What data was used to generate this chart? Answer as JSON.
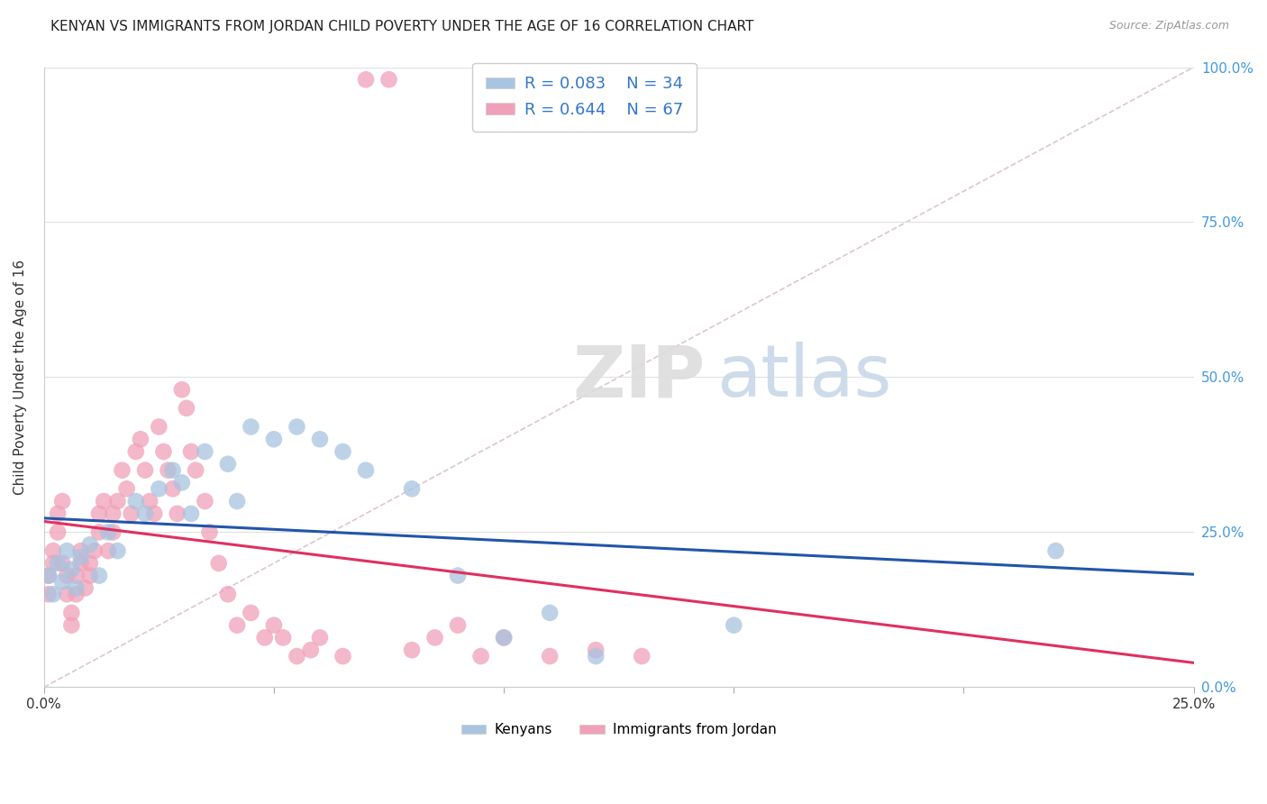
{
  "title": "KENYAN VS IMMIGRANTS FROM JORDAN CHILD POVERTY UNDER THE AGE OF 16 CORRELATION CHART",
  "source": "Source: ZipAtlas.com",
  "ylabel": "Child Poverty Under the Age of 16",
  "legend_blue": {
    "R": "0.083",
    "N": "34",
    "label": "Kenyans"
  },
  "legend_pink": {
    "R": "0.644",
    "N": "67",
    "label": "Immigrants from Jordan"
  },
  "blue_color": "#a8c4e0",
  "pink_color": "#f0a0b8",
  "blue_line_color": "#2255aa",
  "pink_line_color": "#e03060",
  "diag_line_color": "#d4b8c4",
  "watermark_zip_color": "#dddddd",
  "watermark_atlas_color": "#c8d8e8",
  "blue_x": [
    0.001,
    0.002,
    0.003,
    0.004,
    0.005,
    0.006,
    0.007,
    0.008,
    0.01,
    0.012,
    0.014,
    0.016,
    0.02,
    0.022,
    0.025,
    0.028,
    0.03,
    0.032,
    0.035,
    0.04,
    0.042,
    0.045,
    0.05,
    0.055,
    0.06,
    0.065,
    0.07,
    0.08,
    0.09,
    0.1,
    0.11,
    0.12,
    0.15,
    0.22
  ],
  "blue_y": [
    0.18,
    0.15,
    0.2,
    0.17,
    0.22,
    0.19,
    0.16,
    0.21,
    0.23,
    0.18,
    0.25,
    0.22,
    0.3,
    0.28,
    0.32,
    0.35,
    0.33,
    0.28,
    0.38,
    0.36,
    0.3,
    0.42,
    0.4,
    0.42,
    0.4,
    0.38,
    0.35,
    0.32,
    0.18,
    0.08,
    0.12,
    0.05,
    0.1,
    0.22
  ],
  "pink_x": [
    0.001,
    0.001,
    0.002,
    0.002,
    0.003,
    0.003,
    0.004,
    0.004,
    0.005,
    0.005,
    0.006,
    0.006,
    0.007,
    0.007,
    0.008,
    0.008,
    0.009,
    0.01,
    0.01,
    0.011,
    0.012,
    0.012,
    0.013,
    0.014,
    0.015,
    0.015,
    0.016,
    0.017,
    0.018,
    0.019,
    0.02,
    0.021,
    0.022,
    0.023,
    0.024,
    0.025,
    0.026,
    0.027,
    0.028,
    0.029,
    0.03,
    0.031,
    0.032,
    0.033,
    0.035,
    0.036,
    0.038,
    0.04,
    0.042,
    0.045,
    0.048,
    0.05,
    0.052,
    0.055,
    0.058,
    0.06,
    0.065,
    0.07,
    0.075,
    0.08,
    0.085,
    0.09,
    0.095,
    0.1,
    0.11,
    0.12,
    0.13
  ],
  "pink_y": [
    0.15,
    0.18,
    0.2,
    0.22,
    0.25,
    0.28,
    0.2,
    0.3,
    0.15,
    0.18,
    0.1,
    0.12,
    0.15,
    0.18,
    0.2,
    0.22,
    0.16,
    0.18,
    0.2,
    0.22,
    0.25,
    0.28,
    0.3,
    0.22,
    0.25,
    0.28,
    0.3,
    0.35,
    0.32,
    0.28,
    0.38,
    0.4,
    0.35,
    0.3,
    0.28,
    0.42,
    0.38,
    0.35,
    0.32,
    0.28,
    0.48,
    0.45,
    0.38,
    0.35,
    0.3,
    0.25,
    0.2,
    0.15,
    0.1,
    0.12,
    0.08,
    0.1,
    0.08,
    0.05,
    0.06,
    0.08,
    0.05,
    0.98,
    0.98,
    0.06,
    0.08,
    0.1,
    0.05,
    0.08,
    0.05,
    0.06,
    0.05
  ]
}
